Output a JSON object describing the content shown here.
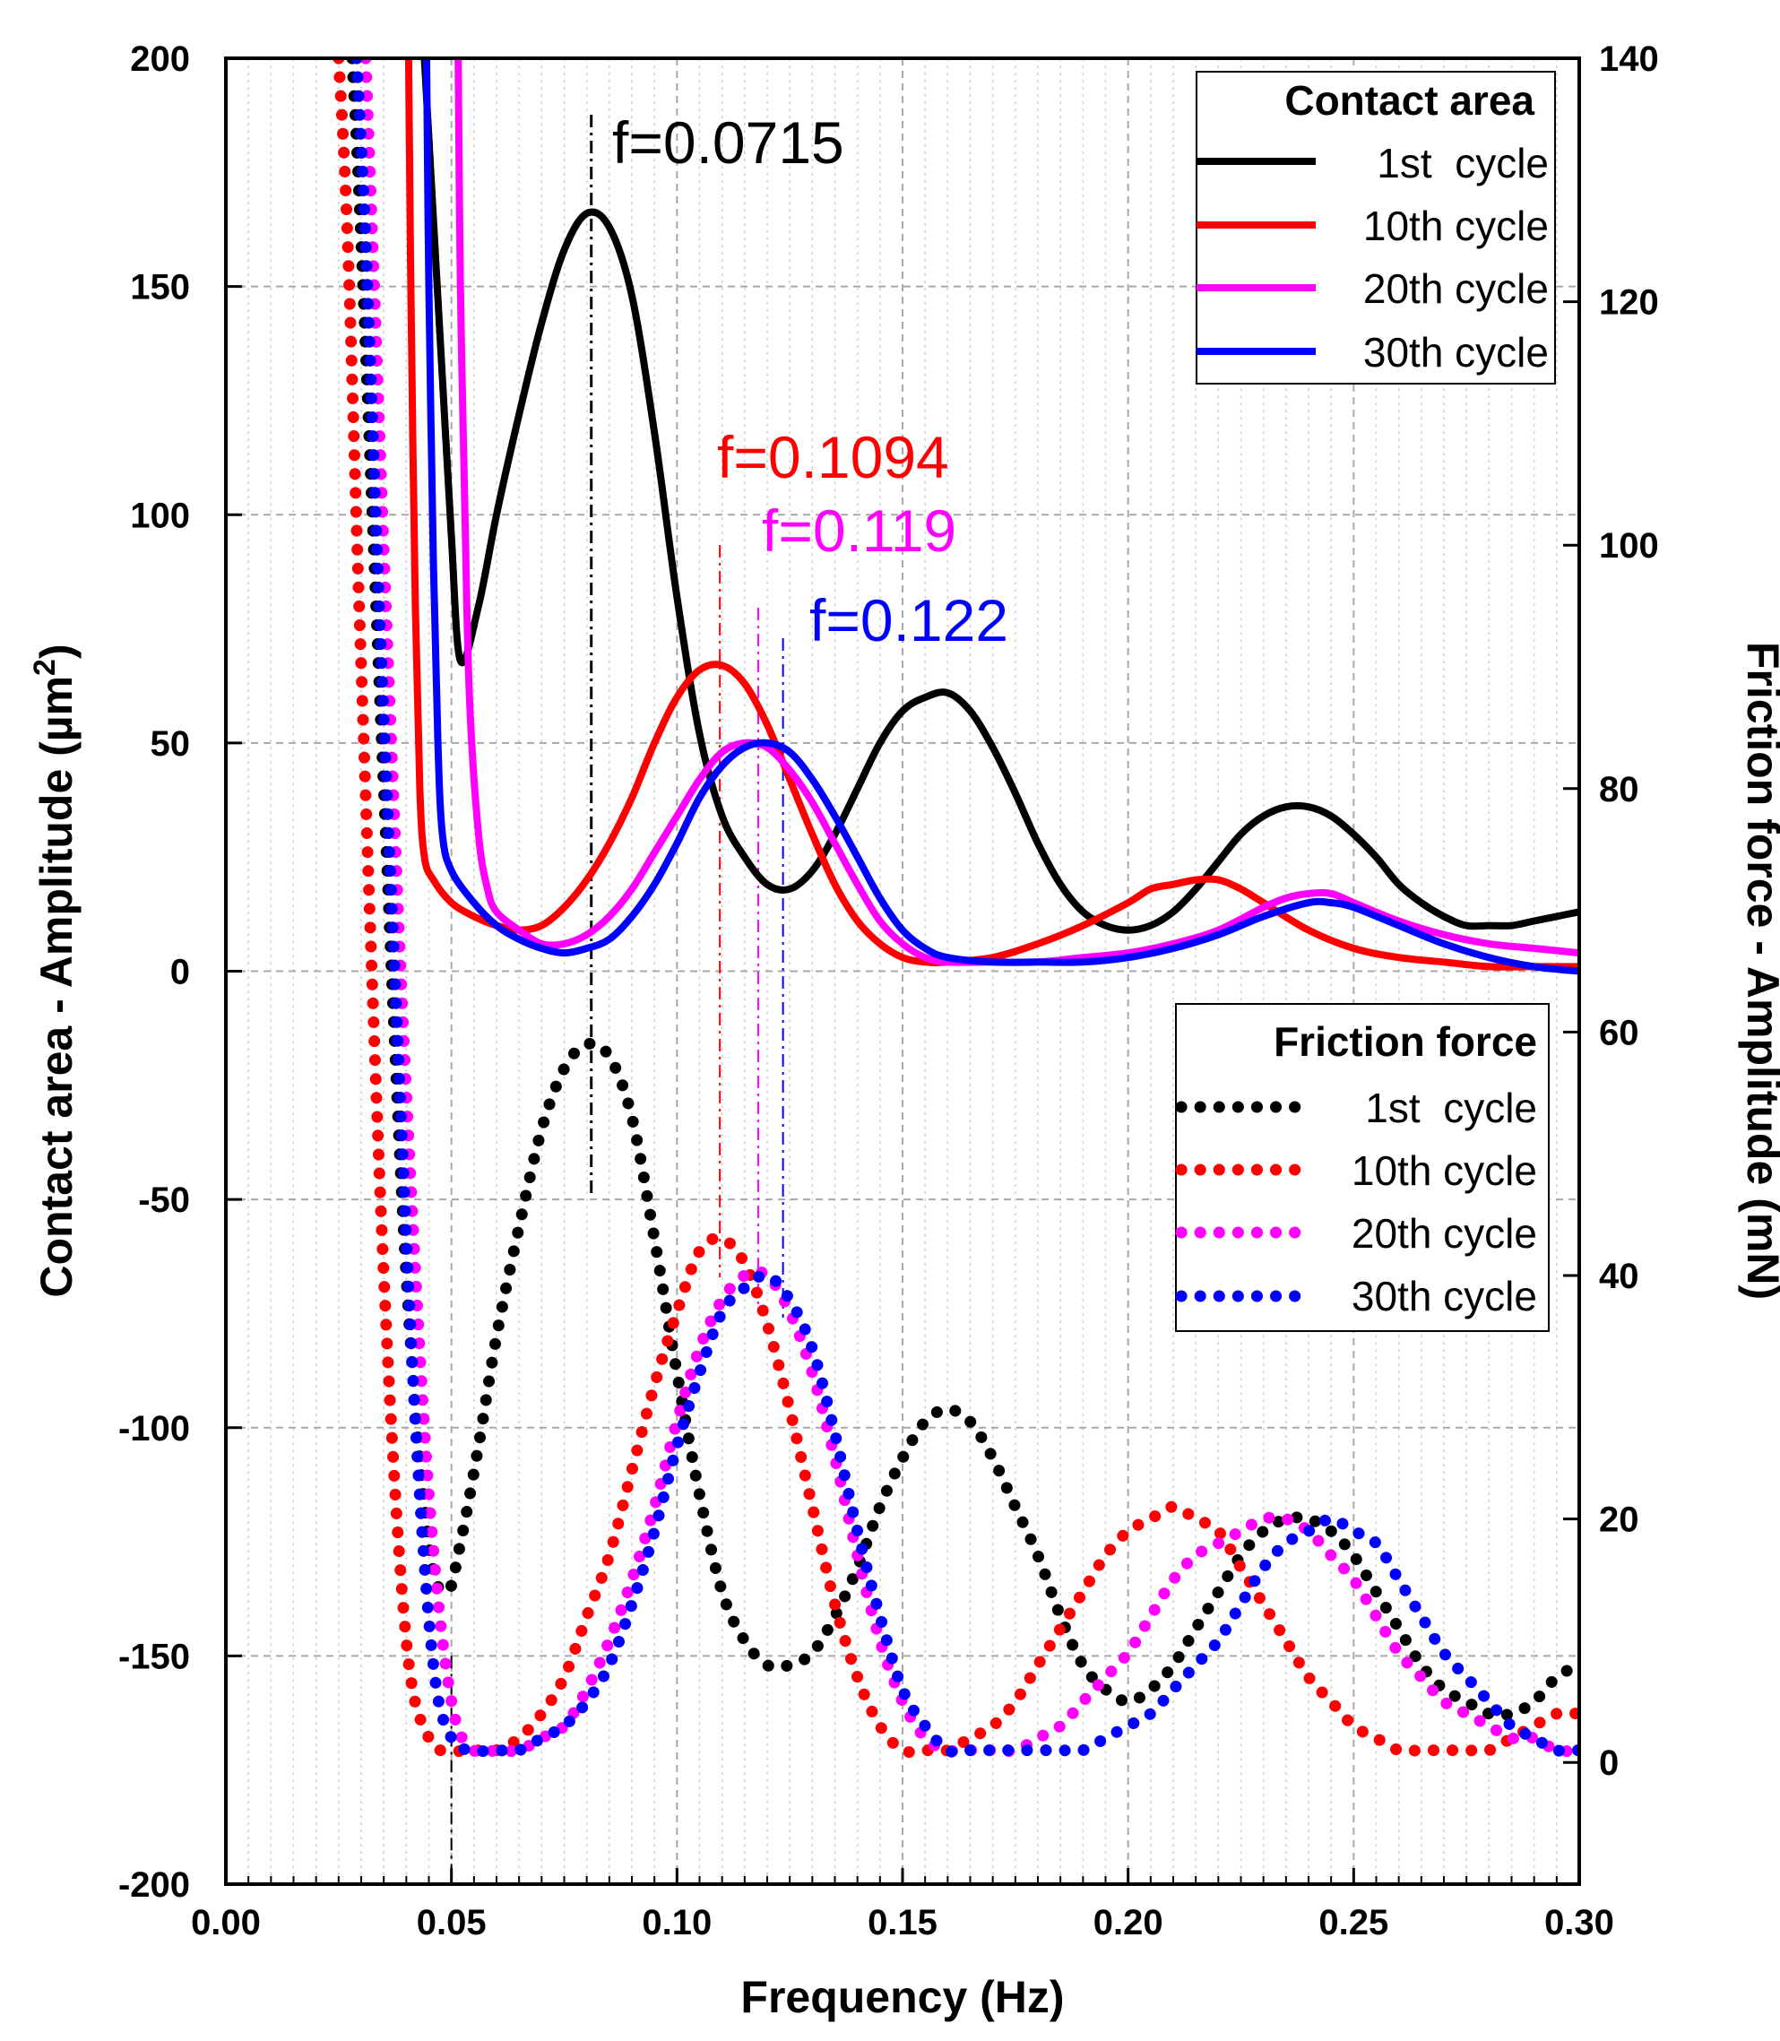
{
  "chart_data": {
    "type": "line",
    "xlabel": "Frequency (Hz)",
    "ylabel_left": "Contact area - Amplitude (µm",
    "ylabel_left_sup": "2",
    "ylabel_left_end": ")",
    "ylabel_right": "Friction force - Amplitude (mN)",
    "xlim": [
      0.0,
      0.3
    ],
    "ylim_left": [
      -200,
      200
    ],
    "ylim_right": [
      -10,
      140
    ],
    "xticks": [
      "0.00",
      "0.05",
      "0.10",
      "0.15",
      "0.20",
      "0.25",
      "0.30"
    ],
    "xtick_values": [
      0.0,
      0.05,
      0.1,
      0.15,
      0.2,
      0.25,
      0.3
    ],
    "yticks_left": [
      "200",
      "150",
      "100",
      "50",
      "0",
      "-50",
      "-100",
      "-150",
      "-200"
    ],
    "ytick_values_left": [
      200,
      150,
      100,
      50,
      0,
      -50,
      -100,
      -150,
      -200
    ],
    "yticks_right": [
      "140",
      "120",
      "100",
      "80",
      "60",
      "40",
      "20",
      "0"
    ],
    "ytick_values_right": [
      140,
      120,
      100,
      80,
      60,
      40,
      20,
      0
    ],
    "grid": true,
    "colors": {
      "1st": "#000000",
      "10th": "#ff0000",
      "20th": "#ff00ff",
      "30th": "#0000ff"
    },
    "legend_contact": {
      "title": "Contact area",
      "position": "top-right",
      "entries": [
        {
          "label": "1st  cycle",
          "color": "#000000"
        },
        {
          "label": "10th cycle",
          "color": "#ff0000"
        },
        {
          "label": "20th cycle",
          "color": "#ff00ff"
        },
        {
          "label": "30th cycle",
          "color": "#0000ff"
        }
      ]
    },
    "legend_friction": {
      "title": "Friction force",
      "position": "center-right",
      "entries": [
        {
          "label": "1st  cycle",
          "color": "#000000"
        },
        {
          "label": "10th cycle",
          "color": "#ff0000"
        },
        {
          "label": "20th cycle",
          "color": "#ff00ff"
        },
        {
          "label": "30th cycle",
          "color": "#0000ff"
        }
      ]
    },
    "annotations": [
      {
        "text": "f=0.0715",
        "color": "#000000",
        "marker_x": 0.081
      },
      {
        "text": "f=0.1094",
        "color": "#ff0000",
        "marker_x": 0.1095
      },
      {
        "text": "f=0.119",
        "color": "#ff00ff",
        "marker_x": 0.118
      },
      {
        "text": "f=0.122",
        "color": "#0000ff",
        "marker_x": 0.1235
      }
    ],
    "series": [
      {
        "name": "Contact area 1st cycle",
        "axis": "left",
        "style": "solid",
        "color": "#000000",
        "x": [
          0.044,
          0.046,
          0.048,
          0.05,
          0.052,
          0.056,
          0.06,
          0.065,
          0.07,
          0.075,
          0.08,
          0.085,
          0.09,
          0.095,
          0.1,
          0.105,
          0.11,
          0.115,
          0.12,
          0.125,
          0.13,
          0.135,
          0.14,
          0.145,
          0.15,
          0.155,
          0.16,
          0.165,
          0.17,
          0.175,
          0.18,
          0.185,
          0.19,
          0.195,
          0.2,
          0.205,
          0.21,
          0.215,
          0.22,
          0.225,
          0.23,
          0.235,
          0.24,
          0.245,
          0.25,
          0.255,
          0.26,
          0.265,
          0.27,
          0.275,
          0.28,
          0.285,
          0.29,
          0.295,
          0.3
        ],
        "y": [
          200,
          165,
          130,
          95,
          68,
          80,
          100,
          122,
          142,
          158,
          166,
          163,
          148,
          118,
          82,
          52,
          34,
          25,
          19,
          18,
          22,
          30,
          40,
          50,
          57,
          60,
          61,
          57,
          49,
          39,
          28,
          19,
          13,
          10,
          9,
          10,
          13,
          18,
          24,
          30,
          34,
          36,
          36,
          34,
          30,
          25,
          19,
          15,
          12,
          10,
          10,
          10,
          11,
          12,
          13
        ]
      },
      {
        "name": "Contact area 10th cycle",
        "axis": "left",
        "style": "solid",
        "color": "#ff0000",
        "x": [
          0.0405,
          0.041,
          0.042,
          0.043,
          0.044,
          0.046,
          0.05,
          0.055,
          0.06,
          0.065,
          0.07,
          0.075,
          0.08,
          0.085,
          0.09,
          0.095,
          0.1,
          0.105,
          0.11,
          0.115,
          0.12,
          0.125,
          0.13,
          0.135,
          0.14,
          0.145,
          0.15,
          0.155,
          0.16,
          0.17,
          0.18,
          0.19,
          0.2,
          0.205,
          0.21,
          0.215,
          0.22,
          0.225,
          0.23,
          0.24,
          0.25,
          0.26,
          0.27,
          0.28,
          0.29,
          0.3
        ],
        "y": [
          200,
          150,
          80,
          40,
          25,
          20,
          15,
          12,
          10,
          9,
          10,
          14,
          20,
          28,
          38,
          50,
          60,
          66,
          67,
          63,
          54,
          42,
          30,
          19,
          11,
          6,
          3,
          2,
          2,
          3,
          6,
          10,
          15,
          18,
          19,
          20,
          20,
          18,
          15,
          9,
          5,
          3,
          2,
          1,
          1,
          1
        ]
      },
      {
        "name": "Contact area 20th cycle",
        "axis": "left",
        "style": "solid",
        "color": "#ff00ff",
        "x": [
          0.0515,
          0.052,
          0.053,
          0.054,
          0.056,
          0.058,
          0.06,
          0.065,
          0.07,
          0.075,
          0.08,
          0.085,
          0.09,
          0.095,
          0.1,
          0.105,
          0.11,
          0.115,
          0.12,
          0.125,
          0.13,
          0.135,
          0.14,
          0.145,
          0.15,
          0.155,
          0.16,
          0.17,
          0.18,
          0.19,
          0.2,
          0.21,
          0.22,
          0.23,
          0.235,
          0.24,
          0.245,
          0.25,
          0.26,
          0.27,
          0.28,
          0.29,
          0.3
        ],
        "y": [
          200,
          150,
          100,
          60,
          30,
          18,
          13,
          9,
          6,
          6,
          8,
          12,
          18,
          26,
          34,
          42,
          48,
          50,
          49,
          44,
          37,
          28,
          19,
          11,
          6,
          3,
          2,
          2,
          2,
          3,
          4,
          6,
          9,
          14,
          16,
          17,
          17,
          15,
          11,
          8,
          6,
          5,
          4
        ]
      },
      {
        "name": "Contact area 30th cycle",
        "axis": "left",
        "style": "solid",
        "color": "#0000ff",
        "x": [
          0.0445,
          0.045,
          0.046,
          0.047,
          0.048,
          0.05,
          0.055,
          0.06,
          0.065,
          0.07,
          0.075,
          0.08,
          0.085,
          0.09,
          0.095,
          0.1,
          0.105,
          0.11,
          0.115,
          0.12,
          0.125,
          0.13,
          0.135,
          0.14,
          0.145,
          0.15,
          0.155,
          0.16,
          0.17,
          0.18,
          0.19,
          0.2,
          0.21,
          0.22,
          0.23,
          0.24,
          0.245,
          0.25,
          0.26,
          0.27,
          0.28,
          0.29,
          0.3
        ],
        "y": [
          200,
          150,
          90,
          50,
          30,
          22,
          15,
          10,
          7,
          5,
          4,
          5,
          7,
          12,
          19,
          28,
          38,
          45,
          49,
          50,
          48,
          42,
          34,
          25,
          16,
          9,
          5,
          3,
          2,
          2,
          2,
          3,
          5,
          8,
          12,
          15,
          15,
          14,
          10,
          6,
          3,
          1,
          0
        ]
      },
      {
        "name": "Friction force 1st cycle",
        "axis": "right",
        "style": "dotted",
        "color": "#000000",
        "x": [
          0.028,
          0.03,
          0.035,
          0.04,
          0.045,
          0.049,
          0.052,
          0.056,
          0.06,
          0.065,
          0.07,
          0.075,
          0.08,
          0.085,
          0.09,
          0.095,
          0.1,
          0.105,
          0.11,
          0.115,
          0.12,
          0.125,
          0.13,
          0.135,
          0.14,
          0.145,
          0.15,
          0.155,
          0.16,
          0.165,
          0.17,
          0.175,
          0.18,
          0.185,
          0.19,
          0.195,
          0.2,
          0.205,
          0.21,
          0.215,
          0.22,
          0.225,
          0.23,
          0.235,
          0.24,
          0.245,
          0.25,
          0.255,
          0.26,
          0.265,
          0.27,
          0.275,
          0.28,
          0.285,
          0.29,
          0.295,
          0.3
        ],
        "y": [
          140,
          125,
          80,
          40,
          18,
          14,
          18,
          26,
          35,
          44,
          52,
          57,
          59,
          58,
          53,
          43,
          32,
          22,
          14,
          10,
          8,
          8,
          9,
          12,
          16,
          21,
          25,
          28,
          29,
          28,
          25,
          21,
          17,
          12,
          8,
          6,
          5,
          6,
          8,
          11,
          14,
          17,
          19,
          20,
          20,
          19,
          17,
          14,
          11,
          8,
          6,
          5,
          4,
          4,
          5,
          7,
          8
        ]
      },
      {
        "name": "Friction force 10th cycle",
        "axis": "right",
        "style": "dotted",
        "color": "#ff0000",
        "x": [
          0.025,
          0.027,
          0.03,
          0.035,
          0.04,
          0.045,
          0.05,
          0.055,
          0.06,
          0.065,
          0.07,
          0.075,
          0.08,
          0.085,
          0.09,
          0.095,
          0.1,
          0.105,
          0.11,
          0.115,
          0.12,
          0.125,
          0.13,
          0.135,
          0.14,
          0.145,
          0.15,
          0.155,
          0.16,
          0.165,
          0.17,
          0.175,
          0.18,
          0.185,
          0.19,
          0.195,
          0.2,
          0.205,
          0.21,
          0.215,
          0.22,
          0.225,
          0.23,
          0.235,
          0.24,
          0.245,
          0.25,
          0.255,
          0.26,
          0.265,
          0.27,
          0.275,
          0.28,
          0.285,
          0.29,
          0.295,
          0.3
        ],
        "y": [
          140,
          125,
          90,
          40,
          10,
          2,
          1,
          1,
          1,
          2,
          4,
          7,
          12,
          17,
          24,
          31,
          37,
          42,
          43,
          41,
          36,
          29,
          21,
          13,
          7,
          3,
          1,
          1,
          1,
          2,
          3,
          5,
          8,
          11,
          14,
          17,
          19,
          20,
          21,
          20,
          19,
          16,
          13,
          10,
          7,
          5,
          3,
          2,
          1,
          1,
          1,
          1,
          1,
          2,
          3,
          4,
          4
        ]
      },
      {
        "name": "Friction force 20th cycle",
        "axis": "right",
        "style": "dotted",
        "color": "#ff00ff",
        "x": [
          0.031,
          0.033,
          0.036,
          0.04,
          0.045,
          0.05,
          0.055,
          0.06,
          0.065,
          0.07,
          0.075,
          0.08,
          0.085,
          0.09,
          0.095,
          0.1,
          0.105,
          0.11,
          0.115,
          0.12,
          0.125,
          0.13,
          0.135,
          0.14,
          0.145,
          0.15,
          0.155,
          0.16,
          0.165,
          0.17,
          0.175,
          0.18,
          0.185,
          0.19,
          0.195,
          0.2,
          0.205,
          0.21,
          0.215,
          0.22,
          0.225,
          0.23,
          0.235,
          0.24,
          0.245,
          0.25,
          0.255,
          0.26,
          0.265,
          0.27,
          0.275,
          0.28,
          0.285,
          0.29,
          0.295,
          0.3
        ],
        "y": [
          140,
          120,
          90,
          55,
          22,
          5,
          1,
          1,
          1,
          2,
          3,
          6,
          10,
          15,
          21,
          28,
          34,
          38,
          40,
          40,
          37,
          32,
          25,
          17,
          10,
          5,
          2,
          1,
          1,
          1,
          1,
          2,
          3,
          5,
          7,
          9,
          12,
          15,
          17,
          18,
          19,
          20,
          20,
          19,
          17,
          15,
          12,
          9,
          7,
          5,
          4,
          3,
          2,
          2,
          1,
          1
        ]
      },
      {
        "name": "Friction force 30th cycle",
        "axis": "right",
        "style": "dotted",
        "color": "#0000ff",
        "x": [
          0.029,
          0.031,
          0.034,
          0.038,
          0.042,
          0.046,
          0.05,
          0.055,
          0.06,
          0.065,
          0.07,
          0.075,
          0.08,
          0.085,
          0.09,
          0.095,
          0.1,
          0.105,
          0.11,
          0.115,
          0.12,
          0.125,
          0.13,
          0.135,
          0.14,
          0.145,
          0.15,
          0.155,
          0.16,
          0.165,
          0.17,
          0.175,
          0.18,
          0.185,
          0.19,
          0.195,
          0.2,
          0.205,
          0.21,
          0.215,
          0.22,
          0.225,
          0.23,
          0.235,
          0.24,
          0.245,
          0.25,
          0.255,
          0.26,
          0.265,
          0.27,
          0.275,
          0.28,
          0.285,
          0.29,
          0.295,
          0.3
        ],
        "y": [
          140,
          125,
          95,
          60,
          28,
          8,
          2,
          1,
          1,
          1,
          2,
          3,
          5,
          8,
          13,
          19,
          26,
          32,
          37,
          39,
          40,
          38,
          34,
          27,
          19,
          12,
          6,
          3,
          1,
          1,
          1,
          1,
          1,
          1,
          1,
          2,
          3,
          4,
          6,
          8,
          10,
          13,
          16,
          18,
          19,
          20,
          19,
          18,
          15,
          12,
          9,
          7,
          5,
          3,
          2,
          1,
          1
        ]
      }
    ]
  }
}
